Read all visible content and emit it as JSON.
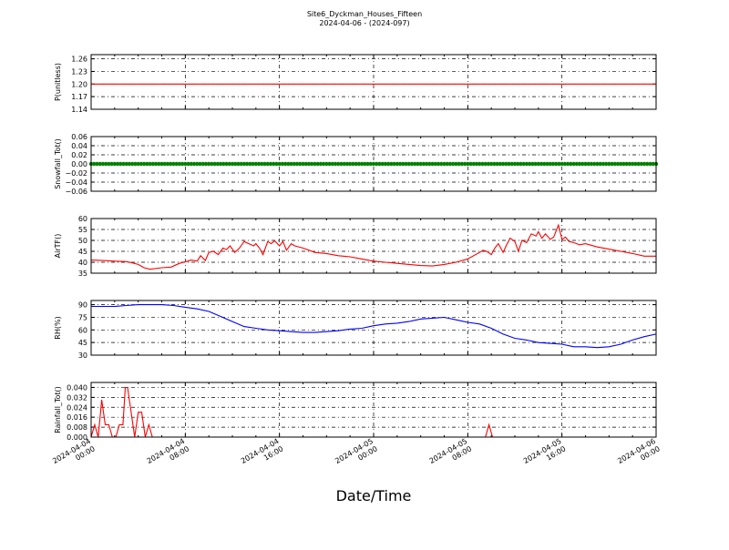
{
  "title": "Site6_Dyckman_Houses_Fifteen",
  "subtitle": "2024-04-06 - (2024-097)",
  "xlabel": "Date/Time",
  "x_ticks": [
    "2024-04-04\n00:00",
    "2024-04-04\n08:00",
    "2024-04-04\n16:00",
    "2024-04-05\n00:00",
    "2024-04-05\n08:00",
    "2024-04-05\n16:00",
    "2024-04-06\n00:00"
  ],
  "colors": {
    "red": "#ff0000",
    "green": "#008000",
    "blue": "#0000ff"
  },
  "chart_data": [
    {
      "type": "line",
      "ylabel": "P(unitless)",
      "ylim": [
        1.14,
        1.27
      ],
      "yticks": [
        "1.14",
        "1.17",
        "1.20",
        "1.23",
        "1.26"
      ],
      "grid": true,
      "color": "#ff0000",
      "series": [
        {
          "x": [
            0,
            48
          ],
          "values": [
            1.2,
            1.2
          ]
        }
      ]
    },
    {
      "type": "line",
      "ylabel": "Snowfall_Tot()",
      "ylim": [
        -0.06,
        0.06
      ],
      "yticks": [
        "−0.06",
        "−0.04",
        "−0.02",
        "0.00",
        "0.02",
        "0.04",
        "0.06"
      ],
      "grid": true,
      "color": "#008000",
      "marker": "dots",
      "series": [
        {
          "x": [
            0,
            48
          ],
          "values": [
            0,
            0
          ]
        }
      ]
    },
    {
      "type": "line",
      "ylabel": "AirTF()",
      "ylim": [
        35,
        60
      ],
      "yticks": [
        "35",
        "40",
        "45",
        "50",
        "55",
        "60"
      ],
      "grid": true,
      "color": "#ff0000",
      "series": [
        {
          "x": [
            0,
            1,
            2,
            3,
            3.5,
            4,
            4.5,
            5,
            6,
            6.8,
            7.5,
            8.2,
            8.5,
            9,
            9.3,
            9.7,
            10,
            10.4,
            10.8,
            11.2,
            11.5,
            11.8,
            12.2,
            12.6,
            13,
            13.4,
            13.8,
            14,
            14.3,
            14.6,
            15,
            15.3,
            15.6,
            16,
            16.3,
            16.6,
            17,
            17.3,
            18,
            19,
            20,
            21,
            22,
            23,
            24,
            25,
            26,
            27,
            28,
            29,
            30,
            31,
            32,
            33,
            33.3,
            33.6,
            34,
            34.3,
            34.6,
            35,
            35.3,
            35.6,
            36,
            36.3,
            36.6,
            37,
            37.4,
            37.8,
            38,
            38.3,
            38.6,
            39,
            39.3,
            39.7,
            40,
            40.3,
            40.6,
            41,
            41.5,
            42,
            43,
            44,
            45,
            46,
            47,
            48
          ],
          "values": [
            41,
            40.8,
            40.5,
            40.3,
            39.7,
            39.0,
            37.5,
            36.8,
            37.5,
            37.8,
            39.5,
            40.5,
            41,
            40.5,
            43,
            40.8,
            44.5,
            45,
            43.5,
            46.5,
            45.8,
            47.5,
            44.5,
            46.5,
            49.5,
            48.5,
            47.5,
            48.5,
            46.5,
            43.5,
            49.5,
            48.5,
            49.8,
            47.5,
            49.5,
            45.5,
            48.5,
            47.5,
            46.5,
            44.5,
            44,
            43,
            42.5,
            41.5,
            40.5,
            40,
            39.5,
            39,
            38.5,
            38.3,
            39,
            40,
            41.5,
            44.5,
            45.5,
            45,
            43.5,
            46.5,
            48.5,
            44.5,
            48,
            51,
            49.5,
            45,
            50,
            49,
            53,
            52,
            54,
            51,
            53,
            50.5,
            51.5,
            57,
            50.5,
            51.5,
            49.5,
            49,
            48,
            48.5,
            47,
            46,
            45,
            44,
            42.8,
            42.8
          ]
        }
      ]
    },
    {
      "type": "line",
      "ylabel": "RH(%)",
      "ylim": [
        30,
        95
      ],
      "yticks": [
        "30",
        "45",
        "60",
        "75",
        "90"
      ],
      "grid": true,
      "color": "#0000ff",
      "series": [
        {
          "x": [
            0,
            2,
            3,
            4,
            5,
            6,
            7,
            8,
            9,
            10,
            11,
            12,
            13,
            14,
            15,
            16,
            17,
            18,
            19,
            20,
            21,
            22,
            23,
            24,
            25,
            26,
            27,
            28,
            29,
            30,
            31,
            32,
            33,
            34,
            35,
            36,
            37,
            38,
            39,
            40,
            41,
            42,
            43,
            44,
            45,
            46,
            47,
            48
          ],
          "values": [
            88,
            88,
            89,
            90,
            90,
            90,
            89,
            87,
            85,
            82,
            76,
            70,
            64,
            62,
            60,
            59,
            58,
            57,
            57,
            58,
            59,
            61,
            62,
            65,
            67,
            68,
            70,
            73,
            74,
            75,
            72,
            69,
            67,
            62,
            55,
            50,
            48,
            45,
            44,
            43,
            40,
            40,
            39,
            40,
            43,
            48,
            52,
            55
          ]
        }
      ]
    },
    {
      "type": "line",
      "ylabel": "Rainfall_Tot()",
      "ylim": [
        0,
        0.044
      ],
      "yticks": [
        "0.000",
        "0.008",
        "0.016",
        "0.024",
        "0.032",
        "0.040"
      ],
      "grid": true,
      "color": "#ff0000",
      "series": [
        {
          "x": [
            0,
            0.3,
            0.6,
            0.9,
            1.2,
            1.5,
            1.8,
            2.1,
            2.4,
            2.7,
            2.9,
            3.1,
            3.4,
            3.7,
            4.0,
            4.3,
            4.6,
            4.9,
            5.2,
            5.5,
            5.8,
            6.0,
            33.5,
            33.8,
            34.1,
            48
          ],
          "values": [
            0,
            0.01,
            0,
            0.03,
            0.01,
            0.01,
            0,
            0,
            0.01,
            0.01,
            0.04,
            0.04,
            0.02,
            0,
            0.02,
            0.02,
            0,
            0.01,
            0,
            0,
            0,
            0,
            0,
            0.01,
            0,
            0
          ]
        }
      ]
    }
  ]
}
